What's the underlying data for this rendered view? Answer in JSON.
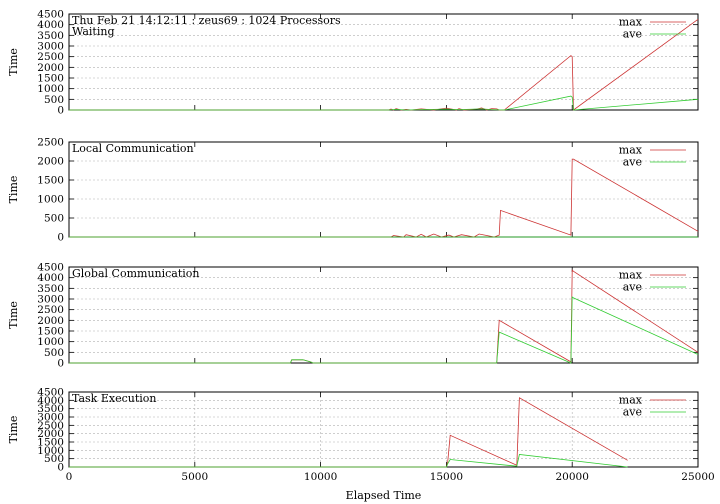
{
  "colors": {
    "max": "#cc3333",
    "ave": "#33cc33",
    "axis": "#000000",
    "grid": "#b0b0b0"
  },
  "x_axis": {
    "label": "Elapsed Time",
    "range": [
      0,
      25000
    ],
    "ticks": [
      "0",
      "5000",
      "10000",
      "15000",
      "20000",
      "25000"
    ]
  },
  "chart_data": [
    {
      "type": "line",
      "title": "Thu Feb 21 14:12:11 : zeus69 : 1024 Processors",
      "subtitle": "Waiting",
      "ylabel": "Time",
      "ylim": [
        0,
        4500
      ],
      "yticks": [
        "0",
        "500",
        "1000",
        "1500",
        "2000",
        "2500",
        "3000",
        "3500",
        "4000",
        "4500"
      ],
      "grid": true,
      "legend": "top-right",
      "series": [
        {
          "name": "max",
          "x": [
            0,
            12700,
            12800,
            12900,
            13000,
            13200,
            13400,
            13600,
            14000,
            14500,
            15000,
            15400,
            15500,
            15700,
            16200,
            16400,
            16600,
            16800,
            17000,
            17100,
            17300,
            19950,
            20000,
            20050,
            25000
          ],
          "y": [
            0,
            0,
            40,
            0,
            60,
            0,
            30,
            0,
            50,
            0,
            90,
            0,
            60,
            0,
            40,
            100,
            0,
            60,
            50,
            0,
            0,
            2550,
            2500,
            0,
            4250
          ]
        },
        {
          "name": "ave",
          "x": [
            0,
            12700,
            13000,
            13400,
            14000,
            15000,
            15500,
            16400,
            16800,
            17300,
            19950,
            20000,
            20050,
            25000
          ],
          "y": [
            0,
            0,
            30,
            0,
            20,
            40,
            20,
            50,
            20,
            0,
            650,
            600,
            0,
            500
          ]
        }
      ]
    },
    {
      "type": "line",
      "title": "Local Communication",
      "ylabel": "Time",
      "ylim": [
        0,
        2500
      ],
      "yticks": [
        "0",
        "500",
        "1000",
        "1500",
        "2000",
        "2500"
      ],
      "grid": true,
      "legend": "top-right",
      "series": [
        {
          "name": "max",
          "x": [
            0,
            12800,
            12900,
            13300,
            13400,
            13800,
            14000,
            14200,
            14500,
            14800,
            15100,
            15300,
            15600,
            16100,
            16300,
            16600,
            16900,
            17100,
            17150,
            19950,
            20000,
            20050,
            25000
          ],
          "y": [
            0,
            0,
            40,
            0,
            60,
            0,
            70,
            0,
            80,
            0,
            50,
            0,
            60,
            0,
            80,
            40,
            0,
            50,
            700,
            50,
            2050,
            2050,
            150
          ]
        },
        {
          "name": "ave",
          "x": [
            0,
            25000
          ],
          "y": [
            0,
            0
          ]
        }
      ]
    },
    {
      "type": "line",
      "title": "Global Communication",
      "ylabel": "Time",
      "ylim": [
        0,
        4500
      ],
      "yticks": [
        "0",
        "500",
        "1000",
        "1500",
        "2000",
        "2500",
        "3000",
        "3500",
        "4000",
        "4500"
      ],
      "grid": true,
      "legend": "top-right",
      "series": [
        {
          "name": "max",
          "x": [
            0,
            8800,
            8850,
            9300,
            9600,
            9700,
            17000,
            17100,
            19950,
            20000,
            20050,
            25000
          ],
          "y": [
            0,
            0,
            150,
            150,
            50,
            0,
            0,
            2000,
            50,
            4350,
            4300,
            500
          ]
        },
        {
          "name": "ave",
          "x": [
            0,
            8800,
            8850,
            9300,
            9600,
            9700,
            17000,
            17100,
            19950,
            20000,
            20050,
            25000
          ],
          "y": [
            0,
            0,
            150,
            150,
            50,
            0,
            0,
            1450,
            0,
            3100,
            3050,
            400
          ]
        }
      ]
    },
    {
      "type": "line",
      "title": "Task Execution",
      "ylabel": "Time",
      "ylim": [
        0,
        4500
      ],
      "yticks": [
        "0",
        "500",
        "1000",
        "1500",
        "2000",
        "2500",
        "3000",
        "3500",
        "4000",
        "4500"
      ],
      "grid": true,
      "legend": "top-right",
      "series": [
        {
          "name": "max",
          "x": [
            0,
            15000,
            15050,
            15150,
            17800,
            17900,
            22200
          ],
          "y": [
            0,
            0,
            300,
            1900,
            100,
            4150,
            400
          ]
        },
        {
          "name": "ave",
          "x": [
            0,
            15000,
            15050,
            15150,
            17800,
            17900,
            22200
          ],
          "y": [
            0,
            0,
            200,
            450,
            50,
            750,
            0
          ]
        }
      ]
    }
  ]
}
